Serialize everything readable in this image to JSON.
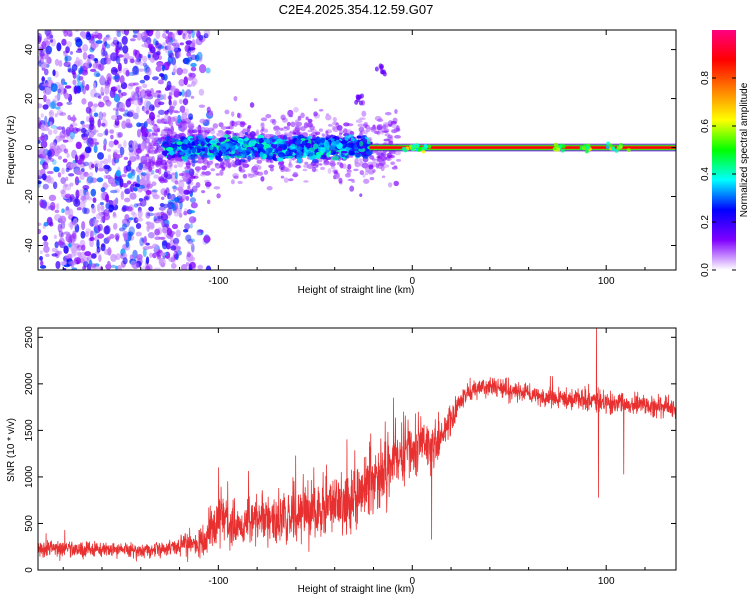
{
  "figure": {
    "title": "C2E4.2025.354.12.59.G07"
  },
  "chart_data": [
    {
      "type": "heatmap",
      "title": "C2E4.2025.354.12.59.G07",
      "xlabel": "Height of straight line (km)",
      "ylabel": "Frequency (Hz)",
      "xlim": [
        -193,
        136
      ],
      "ylim": [
        -50,
        48
      ],
      "xticks": [
        -100,
        0,
        100
      ],
      "yticks": [
        -40,
        -20,
        0,
        20,
        40
      ],
      "xtick_labels": [
        "-100",
        "0",
        "100"
      ],
      "ytick_labels": [
        "-40",
        "-20",
        "0",
        "20",
        "40"
      ],
      "colorbar": {
        "label": "Normalized spectral amplitude",
        "range": [
          0,
          1
        ],
        "ticks": [
          0.0,
          0.2,
          0.4,
          0.6,
          0.8
        ],
        "tick_labels": [
          "0.0",
          "0.2",
          "0.4",
          "0.6",
          "0.8"
        ],
        "colors": [
          "#ffffff",
          "#8000ff",
          "#0000ff",
          "#00ffff",
          "#00ff00",
          "#ffff00",
          "#ff8000",
          "#ff0000",
          "#ff0080"
        ]
      },
      "features": [
        {
          "name": "broadband noise",
          "x_range": [
            -193,
            -112
          ],
          "freq_range": [
            -50,
            48
          ],
          "amplitude": 0.1
        },
        {
          "name": "carrier band (noisy)",
          "x_range": [
            -128,
            -22
          ],
          "freq_center": 0,
          "freq_halfwidth": 8,
          "amplitude": 0.35
        },
        {
          "name": "carrier line",
          "x_range": [
            -22,
            136
          ],
          "freq_center": 0,
          "amplitude": 0.95
        },
        {
          "name": "spur",
          "x": -28,
          "freq": 20,
          "amplitude": 0.15
        },
        {
          "name": "spur",
          "x": -16,
          "freq": 33,
          "amplitude": 0.15
        }
      ]
    },
    {
      "type": "line",
      "title": "",
      "xlabel": "Height of straight line (km)",
      "ylabel": "SNR (10 * v/v)",
      "xlim": [
        -193,
        136
      ],
      "ylim": [
        0,
        2600
      ],
      "xticks": [
        -100,
        0,
        100
      ],
      "yticks": [
        0,
        500,
        1000,
        1500,
        2000,
        2500
      ],
      "xtick_labels": [
        "-100",
        "0",
        "100"
      ],
      "ytick_labels": [
        "0",
        "500",
        "1000",
        "1500",
        "2000",
        "2500"
      ],
      "series": [
        {
          "name": "SNR",
          "color": "#e83030",
          "x": [
            -193,
            -180,
            -170,
            -160,
            -150,
            -140,
            -130,
            -120,
            -110,
            -105,
            -100,
            -90,
            -80,
            -70,
            -60,
            -50,
            -40,
            -30,
            -25,
            -20,
            -15,
            -10,
            -5,
            0,
            5,
            10,
            15,
            20,
            25,
            30,
            35,
            40,
            50,
            60,
            70,
            80,
            90,
            95,
            100,
            110,
            120,
            130,
            136
          ],
          "values": [
            220,
            230,
            210,
            225,
            215,
            210,
            220,
            260,
            300,
            400,
            550,
            480,
            560,
            520,
            600,
            640,
            700,
            760,
            900,
            1000,
            1050,
            1150,
            1250,
            1300,
            1350,
            1320,
            1450,
            1650,
            1800,
            1900,
            1960,
            1980,
            1930,
            1900,
            1860,
            1850,
            1830,
            1820,
            1800,
            1780,
            1760,
            1750,
            1720
          ],
          "noise_amplitude": [
            100,
            110,
            100,
            100,
            100,
            100,
            110,
            130,
            180,
            260,
            330,
            300,
            330,
            330,
            340,
            360,
            400,
            430,
            450,
            470,
            450,
            420,
            400,
            380,
            360,
            300,
            260,
            200,
            170,
            150,
            140,
            130,
            130,
            130,
            130,
            140,
            150,
            160,
            150,
            140,
            140,
            140,
            140
          ],
          "spikes": [
            {
              "x": 95,
              "value": 2600
            },
            {
              "x": 96,
              "value": 780
            },
            {
              "x": 10,
              "value": 330
            },
            {
              "x": 109,
              "value": 1030
            }
          ]
        }
      ]
    }
  ]
}
